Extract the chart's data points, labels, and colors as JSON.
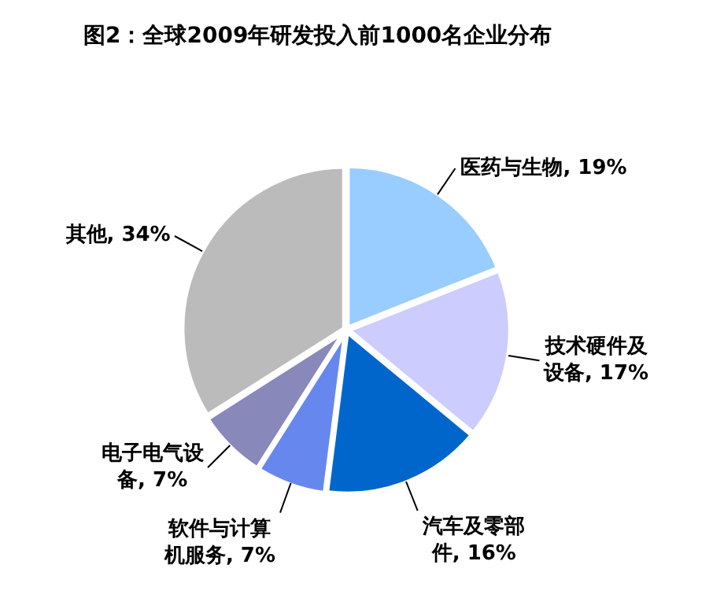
{
  "chart_data": {
    "type": "pie",
    "title": "图2：全球2009年研发投入前1000名企业分布",
    "categories": [
      "医药与生物",
      "技术硬件及设备",
      "汽车及零部件",
      "软件与计算机服务",
      "电子电气设备",
      "其他"
    ],
    "values": [
      19,
      17,
      16,
      7,
      7,
      34
    ],
    "value_labels": [
      "19%",
      "17%",
      "16%",
      "7%",
      "7%",
      "34%"
    ],
    "colors": [
      "#99ccff",
      "#ccccff",
      "#0066cc",
      "#6688ee",
      "#8888bb",
      "#bbbbbb"
    ]
  }
}
